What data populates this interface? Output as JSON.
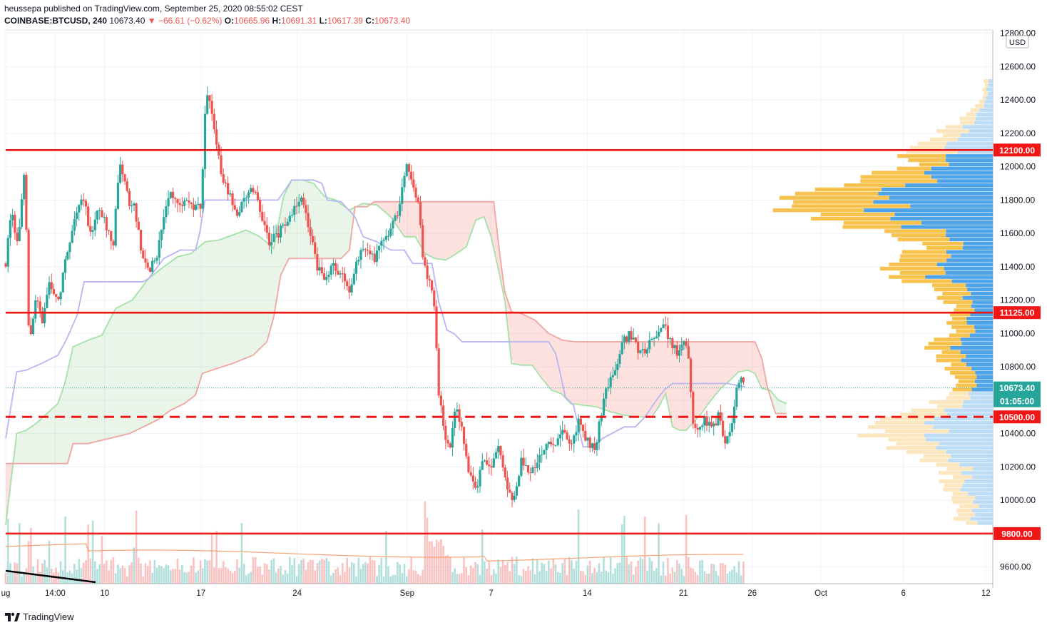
{
  "header": {
    "line1": "heussepa published on TradingView.com, September 25, 2020 08:55:02 CEST",
    "symbol": "COINBASE:BTCUSD, 240",
    "last": "10673.40",
    "change": "▼ −66.61 (−0.62%)",
    "o_label": "O:",
    "o": "10665.96",
    "h_label": "H:",
    "h": "10691.31",
    "l_label": "L:",
    "l": "10617.39",
    "c_label": "C:",
    "c": "10673.40"
  },
  "footer": {
    "brand": "TradingView"
  },
  "chart_data": {
    "type": "candlestick",
    "currency": "USD",
    "ylim": [
      9500,
      12820
    ],
    "y_ticks": [
      9600,
      9800,
      10000,
      10200,
      10400,
      10600,
      10800,
      11000,
      11200,
      11400,
      11600,
      11800,
      12000,
      12200,
      12400,
      12600,
      12800
    ],
    "y_tick_labels": [
      "9600.00",
      "",
      "10000.00",
      "10200.00",
      "10400.00",
      "",
      "10800.00",
      "11000.00",
      "11200.00",
      "11400.00",
      "11600.00",
      "11800.00",
      "12000.00",
      "12200.00",
      "12400.00",
      "12600.00",
      "12800.00"
    ],
    "x_ticks": [
      {
        "label": "ug",
        "day": 0
      },
      {
        "label": "14:00",
        "day": 3.6
      },
      {
        "label": "10",
        "day": 7.2
      },
      {
        "label": "17",
        "day": 14.2
      },
      {
        "label": "24",
        "day": 21.2
      },
      {
        "label": "Sep",
        "day": 29.2
      },
      {
        "label": "7",
        "day": 35.3
      },
      {
        "label": "14",
        "day": 42.3
      },
      {
        "label": "21",
        "day": 49.3
      },
      {
        "label": "26",
        "day": 54.3
      },
      {
        "label": "Oct",
        "day": 59.3
      },
      {
        "label": "6",
        "day": 65.3
      },
      {
        "label": "12",
        "day": 71.3
      }
    ],
    "x_days_range": [
      0,
      71.8
    ],
    "levels": [
      {
        "price": 12100,
        "label": "12100.00",
        "style": "solid",
        "color": "#f21515"
      },
      {
        "price": 11125,
        "label": "11125.00",
        "style": "solid",
        "color": "#f21515"
      },
      {
        "price": 10500,
        "label": "10500.00",
        "style": "dashed",
        "color": "#f21515"
      },
      {
        "price": 9800,
        "label": "9800.00",
        "style": "solid",
        "color": "#f21515"
      }
    ],
    "last_price": {
      "price": 10673.4,
      "label": "10673.40",
      "countdown": "01:05:00",
      "color": "#26a69a"
    },
    "candle_path": [
      [
        0,
        11420
      ],
      [
        0.4,
        11720
      ],
      [
        0.9,
        11550
      ],
      [
        1.4,
        11980
      ],
      [
        1.7,
        10900
      ],
      [
        2.2,
        11230
      ],
      [
        2.7,
        11070
      ],
      [
        3.2,
        11300
      ],
      [
        3.8,
        11180
      ],
      [
        4.4,
        11450
      ],
      [
        5.0,
        11680
      ],
      [
        5.6,
        11820
      ],
      [
        6.2,
        11600
      ],
      [
        6.8,
        11760
      ],
      [
        7.3,
        11650
      ],
      [
        7.8,
        11520
      ],
      [
        8.3,
        12040
      ],
      [
        8.9,
        11800
      ],
      [
        9.4,
        11750
      ],
      [
        9.9,
        11460
      ],
      [
        10.5,
        11380
      ],
      [
        11.0,
        11470
      ],
      [
        11.5,
        11700
      ],
      [
        12.0,
        11850
      ],
      [
        12.6,
        11750
      ],
      [
        13.1,
        11810
      ],
      [
        13.7,
        11740
      ],
      [
        14.2,
        11760
      ],
      [
        14.6,
        12480
      ],
      [
        15.2,
        12200
      ],
      [
        15.7,
        11950
      ],
      [
        16.3,
        11820
      ],
      [
        16.9,
        11700
      ],
      [
        17.5,
        11840
      ],
      [
        18.1,
        11870
      ],
      [
        18.6,
        11700
      ],
      [
        19.2,
        11550
      ],
      [
        19.8,
        11600
      ],
      [
        20.4,
        11660
      ],
      [
        20.9,
        11720
      ],
      [
        21.5,
        11820
      ],
      [
        22.1,
        11620
      ],
      [
        22.7,
        11390
      ],
      [
        23.3,
        11310
      ],
      [
        23.8,
        11430
      ],
      [
        24.4,
        11350
      ],
      [
        25.0,
        11260
      ],
      [
        25.6,
        11460
      ],
      [
        26.2,
        11510
      ],
      [
        26.8,
        11450
      ],
      [
        27.4,
        11580
      ],
      [
        28.0,
        11620
      ],
      [
        28.6,
        11750
      ],
      [
        29.1,
        12020
      ],
      [
        29.5,
        11950
      ],
      [
        30.0,
        11780
      ],
      [
        30.4,
        11400
      ],
      [
        30.8,
        11330
      ],
      [
        31.1,
        11250
      ],
      [
        31.5,
        10650
      ],
      [
        31.9,
        10420
      ],
      [
        32.3,
        10280
      ],
      [
        32.7,
        10580
      ],
      [
        33.2,
        10400
      ],
      [
        33.7,
        10150
      ],
      [
        34.2,
        10050
      ],
      [
        34.8,
        10260
      ],
      [
        35.3,
        10200
      ],
      [
        35.9,
        10310
      ],
      [
        36.4,
        10080
      ],
      [
        36.9,
        10020
      ],
      [
        37.5,
        10230
      ],
      [
        38.1,
        10160
      ],
      [
        38.7,
        10240
      ],
      [
        39.3,
        10350
      ],
      [
        39.9,
        10300
      ],
      [
        40.5,
        10400
      ],
      [
        41.1,
        10320
      ],
      [
        41.7,
        10480
      ],
      [
        42.3,
        10350
      ],
      [
        42.9,
        10310
      ],
      [
        43.4,
        10560
      ],
      [
        43.9,
        10720
      ],
      [
        44.4,
        10800
      ],
      [
        44.9,
        10950
      ],
      [
        45.4,
        10990
      ],
      [
        45.9,
        10920
      ],
      [
        46.4,
        10880
      ],
      [
        46.9,
        10960
      ],
      [
        47.3,
        11000
      ],
      [
        47.8,
        11060
      ],
      [
        48.3,
        10960
      ],
      [
        48.8,
        10880
      ],
      [
        49.3,
        10980
      ],
      [
        49.7,
        10820
      ],
      [
        50.0,
        10430
      ],
      [
        50.4,
        10450
      ],
      [
        50.9,
        10480
      ],
      [
        51.4,
        10430
      ],
      [
        51.9,
        10510
      ],
      [
        52.3,
        10320
      ],
      [
        52.7,
        10400
      ],
      [
        53.1,
        10650
      ],
      [
        53.5,
        10720
      ],
      [
        53.8,
        10673
      ]
    ],
    "ichimoku_cloud_a": [
      [
        0,
        9850
      ],
      [
        0.8,
        10400
      ],
      [
        1.5,
        10420
      ],
      [
        2.2,
        10460
      ],
      [
        3.0,
        10520
      ],
      [
        3.8,
        10580
      ],
      [
        4.3,
        10700
      ],
      [
        4.9,
        10920
      ],
      [
        6.0,
        10960
      ],
      [
        7.0,
        10990
      ],
      [
        8.0,
        11150
      ],
      [
        9.2,
        11200
      ],
      [
        10.4,
        11330
      ],
      [
        11.5,
        11400
      ],
      [
        12.5,
        11460
      ],
      [
        13.5,
        11480
      ],
      [
        14.5,
        11550
      ],
      [
        15.5,
        11560
      ],
      [
        16.5,
        11590
      ],
      [
        17.5,
        11620
      ],
      [
        18.5,
        11580
      ],
      [
        19.5,
        11510
      ],
      [
        20.2,
        11820
      ],
      [
        20.8,
        11920
      ],
      [
        21.6,
        11920
      ],
      [
        22.4,
        11900
      ],
      [
        23.2,
        11820
      ],
      [
        24.0,
        11800
      ],
      [
        25.0,
        11740
      ],
      [
        26.0,
        11780
      ],
      [
        27.0,
        11770
      ],
      [
        28.0,
        11700
      ],
      [
        29.0,
        11580
      ],
      [
        29.8,
        11580
      ],
      [
        30.5,
        11480
      ],
      [
        31.2,
        11450
      ],
      [
        32.0,
        11440
      ],
      [
        32.8,
        11480
      ],
      [
        33.5,
        11520
      ],
      [
        34.2,
        11680
      ],
      [
        34.8,
        11700
      ],
      [
        35.3,
        11580
      ],
      [
        35.8,
        11400
      ],
      [
        36.3,
        11200
      ],
      [
        36.8,
        10820
      ],
      [
        37.5,
        10810
      ],
      [
        38.3,
        10810
      ],
      [
        39.0,
        10730
      ],
      [
        39.7,
        10660
      ],
      [
        40.4,
        10640
      ],
      [
        41.1,
        10580
      ],
      [
        42.0,
        10570
      ],
      [
        43.0,
        10560
      ],
      [
        44.0,
        10530
      ],
      [
        45.0,
        10510
      ],
      [
        46.0,
        10500
      ],
      [
        47.0,
        10500
      ],
      [
        47.5,
        10560
      ],
      [
        48.0,
        10640
      ],
      [
        48.5,
        10440
      ],
      [
        49.0,
        10420
      ],
      [
        49.5,
        10420
      ],
      [
        50.5,
        10510
      ],
      [
        51.3,
        10600
      ],
      [
        52.0,
        10670
      ],
      [
        52.7,
        10720
      ],
      [
        53.3,
        10770
      ],
      [
        54.0,
        10780
      ],
      [
        54.5,
        10760
      ],
      [
        55.0,
        10670
      ],
      [
        55.6,
        10660
      ],
      [
        56.2,
        10600
      ],
      [
        56.8,
        10580
      ]
    ],
    "ichimoku_cloud_b": [
      [
        0,
        10220
      ],
      [
        4.5,
        10220
      ],
      [
        4.9,
        10340
      ],
      [
        6.0,
        10340
      ],
      [
        8.0,
        10380
      ],
      [
        9.0,
        10400
      ],
      [
        10.0,
        10440
      ],
      [
        11.0,
        10480
      ],
      [
        12.0,
        10540
      ],
      [
        13.0,
        10580
      ],
      [
        13.8,
        10630
      ],
      [
        14.3,
        10760
      ],
      [
        15.0,
        10780
      ],
      [
        16.5,
        10820
      ],
      [
        18.0,
        10870
      ],
      [
        19.0,
        10950
      ],
      [
        19.5,
        11100
      ],
      [
        20.0,
        11350
      ],
      [
        20.6,
        11450
      ],
      [
        21.6,
        11450
      ],
      [
        22.4,
        11450
      ],
      [
        23.0,
        11450
      ],
      [
        23.6,
        11450
      ],
      [
        24.4,
        11450
      ],
      [
        25.0,
        11500
      ],
      [
        25.4,
        11760
      ],
      [
        25.8,
        11760
      ],
      [
        26.3,
        11760
      ],
      [
        26.8,
        11790
      ],
      [
        28.0,
        11790
      ],
      [
        29.0,
        11790
      ],
      [
        30.0,
        11790
      ],
      [
        31.0,
        11790
      ],
      [
        32.0,
        11790
      ],
      [
        33.0,
        11790
      ],
      [
        34.0,
        11790
      ],
      [
        35.0,
        11790
      ],
      [
        35.5,
        11790
      ],
      [
        35.9,
        11500
      ],
      [
        36.3,
        11250
      ],
      [
        36.8,
        11130
      ],
      [
        37.5,
        11120
      ],
      [
        38.5,
        11080
      ],
      [
        39.5,
        11000
      ],
      [
        40.5,
        10960
      ],
      [
        41.5,
        10950
      ],
      [
        43.0,
        10950
      ],
      [
        44.5,
        10950
      ],
      [
        46.0,
        10950
      ],
      [
        47.5,
        10950
      ],
      [
        49.0,
        10950
      ],
      [
        50.5,
        10950
      ],
      [
        52.0,
        10950
      ],
      [
        53.5,
        10950
      ],
      [
        54.5,
        10950
      ],
      [
        55.0,
        10850
      ],
      [
        55.4,
        10680
      ],
      [
        55.7,
        10600
      ],
      [
        56.0,
        10520
      ],
      [
        56.8,
        10520
      ]
    ],
    "kijun": [
      [
        0,
        10370
      ],
      [
        0.8,
        10770
      ],
      [
        1.5,
        10780
      ],
      [
        2.6,
        10820
      ],
      [
        3.8,
        10870
      ],
      [
        4.4,
        10960
      ],
      [
        5.2,
        11110
      ],
      [
        5.7,
        11310
      ],
      [
        6.8,
        11310
      ],
      [
        7.9,
        11310
      ],
      [
        9.3,
        11310
      ],
      [
        10.0,
        11310
      ],
      [
        10.4,
        11330
      ],
      [
        11.5,
        11450
      ],
      [
        12.7,
        11500
      ],
      [
        13.8,
        11500
      ],
      [
        14.1,
        11600
      ],
      [
        14.5,
        11800
      ],
      [
        16.0,
        11800
      ],
      [
        17.5,
        11800
      ],
      [
        18.2,
        11800
      ],
      [
        19.8,
        11800
      ],
      [
        20.4,
        11870
      ],
      [
        20.8,
        11920
      ],
      [
        22.4,
        11920
      ],
      [
        23.0,
        11900
      ],
      [
        23.4,
        11800
      ],
      [
        24.4,
        11790
      ],
      [
        25.4,
        11700
      ],
      [
        26.0,
        11580
      ],
      [
        27.0,
        11550
      ],
      [
        28.0,
        11500
      ],
      [
        29.0,
        11500
      ],
      [
        29.6,
        11420
      ],
      [
        30.2,
        11420
      ],
      [
        31.0,
        11420
      ],
      [
        31.5,
        11190
      ],
      [
        32.1,
        11020
      ],
      [
        32.6,
        11000
      ],
      [
        33.2,
        10950
      ],
      [
        34.0,
        10950
      ],
      [
        36.0,
        10950
      ],
      [
        38.0,
        10950
      ],
      [
        39.5,
        10950
      ],
      [
        40.0,
        10880
      ],
      [
        40.4,
        10740
      ],
      [
        40.7,
        10620
      ],
      [
        41.3,
        10570
      ],
      [
        42.0,
        10320
      ],
      [
        42.8,
        10320
      ],
      [
        43.4,
        10370
      ],
      [
        44.3,
        10410
      ],
      [
        45.0,
        10440
      ],
      [
        45.8,
        10440
      ],
      [
        46.5,
        10500
      ],
      [
        47.0,
        10560
      ],
      [
        47.5,
        10620
      ],
      [
        48.0,
        10670
      ],
      [
        48.5,
        10700
      ],
      [
        49.8,
        10700
      ],
      [
        51.0,
        10700
      ],
      [
        52.5,
        10700
      ],
      [
        53.8,
        10680
      ]
    ],
    "volume_ma_label": ""
  }
}
